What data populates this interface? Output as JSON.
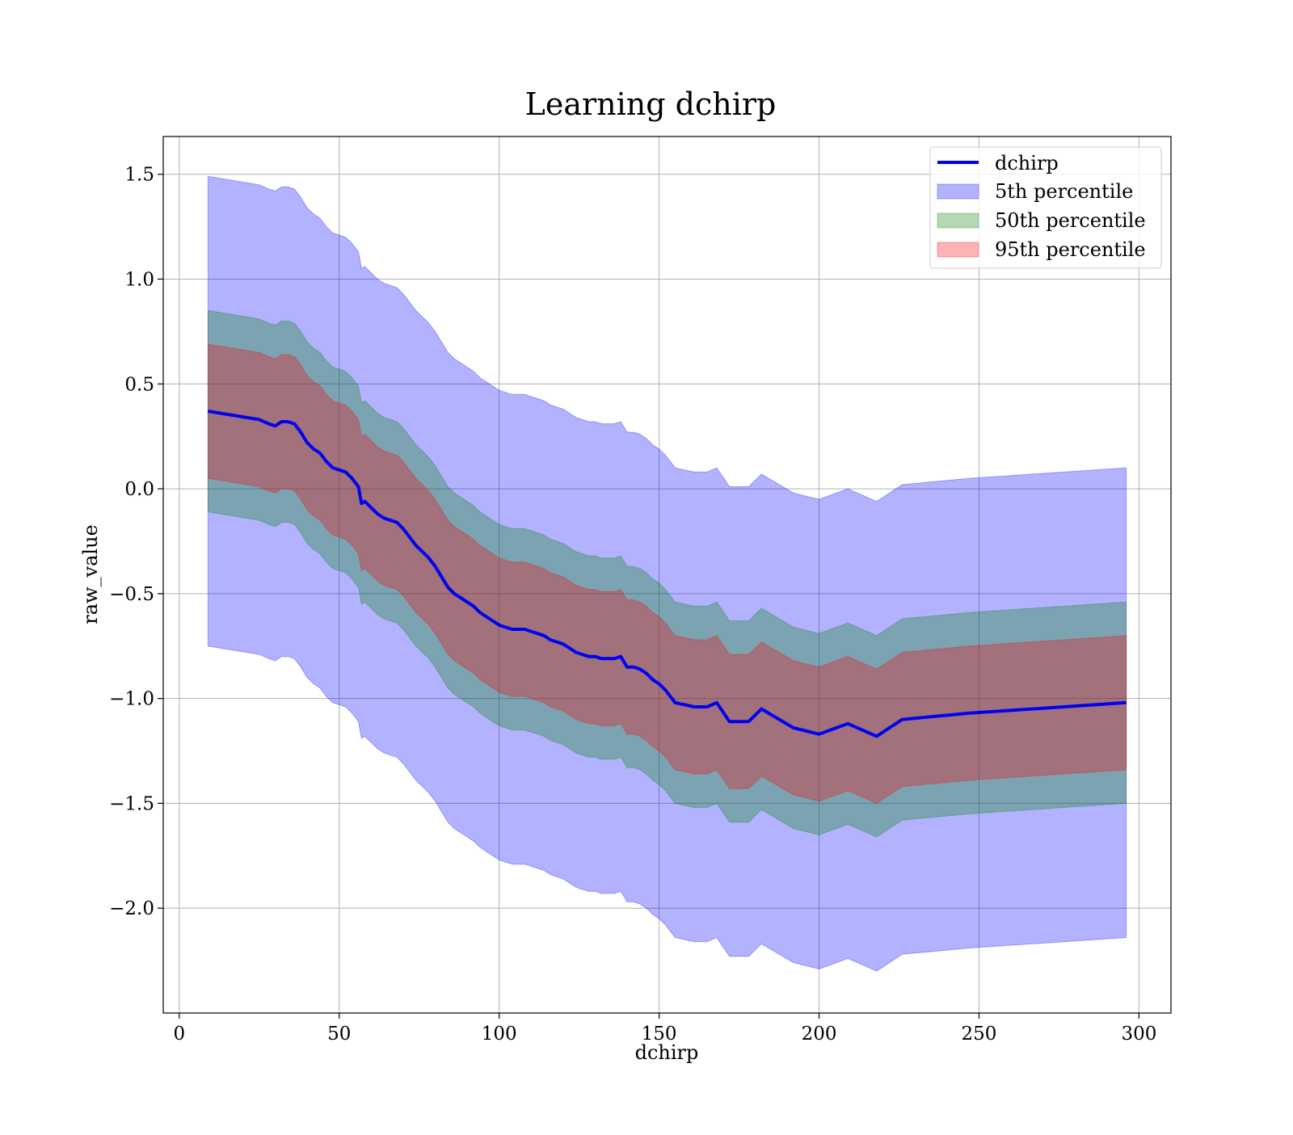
{
  "chart_data": {
    "type": "area",
    "title": "Learning dchirp",
    "xlabel": "dchirp",
    "ylabel": "raw_value",
    "xlim": [
      -5,
      310
    ],
    "ylim": [
      -2.5,
      1.68
    ],
    "xticks": [
      0,
      50,
      100,
      150,
      200,
      250,
      300
    ],
    "yticks": [
      1.5,
      1.0,
      0.5,
      0.0,
      -0.5,
      -1.0,
      -1.5,
      -2.0
    ],
    "xtick_labels": [
      "0",
      "50",
      "100",
      "150",
      "200",
      "250",
      "300"
    ],
    "ytick_labels": [
      "1.5",
      "1.0",
      "0.5",
      "0.0",
      "−0.5",
      "−1.0",
      "−1.5",
      "−2.0"
    ],
    "grid": true,
    "legend_position": "top-right",
    "x": [
      9,
      25,
      28,
      30,
      32,
      34,
      36,
      38,
      40,
      42,
      44,
      46,
      48,
      50,
      52,
      54,
      56,
      57,
      58,
      60,
      62,
      64,
      66,
      68,
      70,
      72,
      74,
      76,
      78,
      80,
      82,
      84,
      86,
      88,
      90,
      92,
      94,
      96,
      98,
      100,
      102,
      104,
      106,
      108,
      110,
      112,
      114,
      116,
      118,
      120,
      122,
      124,
      126,
      128,
      130,
      132,
      134,
      136,
      138,
      140,
      142,
      144,
      146,
      148,
      150,
      152,
      155,
      158,
      161,
      165,
      168,
      172,
      178,
      182,
      192,
      200,
      209,
      218,
      226,
      247,
      296
    ],
    "series": [
      {
        "name": "dchirp",
        "color": "#0000ee",
        "values": [
          0.37,
          0.33,
          0.31,
          0.3,
          0.32,
          0.32,
          0.31,
          0.27,
          0.22,
          0.19,
          0.17,
          0.13,
          0.1,
          0.09,
          0.08,
          0.05,
          0.01,
          -0.07,
          -0.06,
          -0.09,
          -0.12,
          -0.14,
          -0.15,
          -0.16,
          -0.19,
          -0.23,
          -0.27,
          -0.3,
          -0.33,
          -0.37,
          -0.42,
          -0.47,
          -0.5,
          -0.52,
          -0.54,
          -0.56,
          -0.59,
          -0.61,
          -0.63,
          -0.65,
          -0.66,
          -0.67,
          -0.67,
          -0.67,
          -0.68,
          -0.69,
          -0.7,
          -0.72,
          -0.73,
          -0.74,
          -0.76,
          -0.78,
          -0.79,
          -0.8,
          -0.8,
          -0.81,
          -0.81,
          -0.81,
          -0.8,
          -0.85,
          -0.85,
          -0.86,
          -0.88,
          -0.91,
          -0.93,
          -0.96,
          -1.02,
          -1.03,
          -1.04,
          -1.04,
          -1.02,
          -1.11,
          -1.11,
          -1.05,
          -1.14,
          -1.17,
          -1.12,
          -1.18,
          -1.1,
          -1.07,
          -1.02
        ]
      },
      {
        "name": "5th percentile",
        "color": "#0000ff",
        "opacity": 0.3
      },
      {
        "name": "50th percentile",
        "color": "#008000",
        "opacity": 0.3
      },
      {
        "name": "95th percentile",
        "color": "#ff0000",
        "opacity": 0.3
      }
    ],
    "bands": [
      {
        "lower_offset": -1.12,
        "upper_offset": 1.12,
        "color": "#0000ff",
        "opacity": 0.3
      },
      {
        "lower_offset": -0.48,
        "upper_offset": 0.48,
        "color": "#008000",
        "opacity": 0.3
      },
      {
        "lower_offset": -0.32,
        "upper_offset": 0.32,
        "color": "#ff0000",
        "opacity": 0.3
      }
    ]
  }
}
